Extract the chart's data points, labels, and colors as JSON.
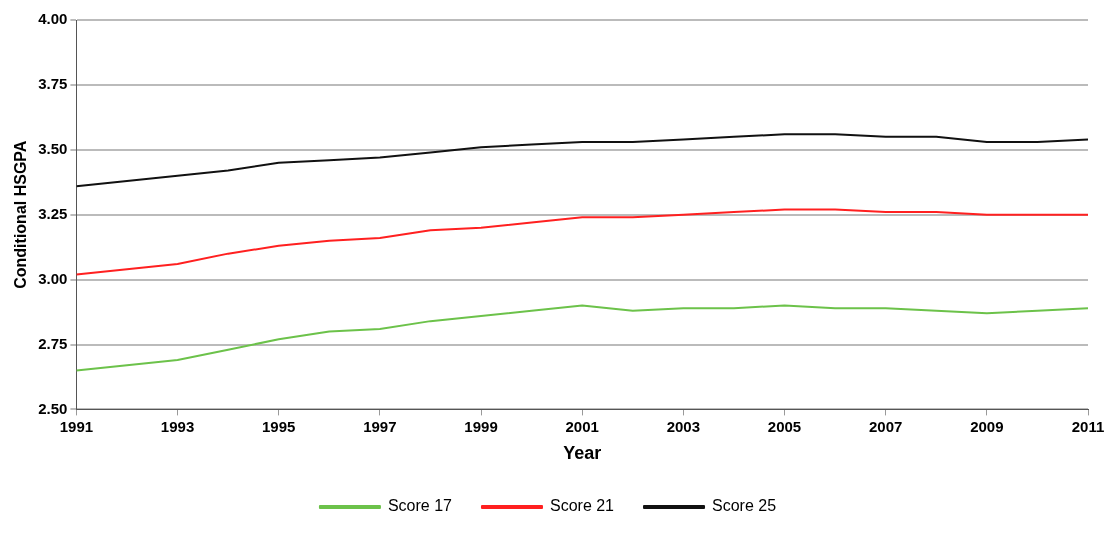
{
  "chart_data": {
    "type": "line",
    "xlabel": "Year",
    "ylabel": "Conditional HSGPA",
    "x": [
      1991,
      1992,
      1993,
      1994,
      1995,
      1996,
      1997,
      1998,
      1999,
      2000,
      2001,
      2002,
      2003,
      2004,
      2005,
      2006,
      2007,
      2008,
      2009,
      2010,
      2011
    ],
    "series": [
      {
        "name": "Score 17",
        "color": "#6cc24a",
        "values": [
          2.65,
          2.67,
          2.69,
          2.73,
          2.77,
          2.8,
          2.81,
          2.84,
          2.86,
          2.88,
          2.9,
          2.88,
          2.89,
          2.89,
          2.9,
          2.89,
          2.89,
          2.88,
          2.87,
          2.88,
          2.89
        ]
      },
      {
        "name": "Score 21",
        "color": "#ff2020",
        "values": [
          3.02,
          3.04,
          3.06,
          3.1,
          3.13,
          3.15,
          3.16,
          3.19,
          3.2,
          3.22,
          3.24,
          3.24,
          3.25,
          3.26,
          3.27,
          3.27,
          3.26,
          3.26,
          3.25,
          3.25,
          3.25
        ]
      },
      {
        "name": "Score 25",
        "color": "#111111",
        "values": [
          3.36,
          3.38,
          3.4,
          3.42,
          3.45,
          3.46,
          3.47,
          3.49,
          3.51,
          3.52,
          3.53,
          3.53,
          3.54,
          3.55,
          3.56,
          3.56,
          3.55,
          3.55,
          3.53,
          3.53,
          3.54
        ]
      }
    ],
    "xlim": [
      1991,
      2011
    ],
    "xticks": [
      1991,
      1993,
      1995,
      1997,
      1999,
      2001,
      2003,
      2005,
      2007,
      2009,
      2011
    ],
    "ylim": [
      2.5,
      4
    ],
    "yticks": [
      {
        "value": 2.5,
        "label": "2.50"
      },
      {
        "value": 2.75,
        "label": "2.75"
      },
      {
        "value": 3,
        "label": "3.00"
      },
      {
        "value": 3.25,
        "label": "3.25"
      },
      {
        "value": 3.5,
        "label": "3.50"
      },
      {
        "value": 3.75,
        "label": "3.75"
      },
      {
        "value": 4,
        "label": "4.00"
      }
    ],
    "grid": "y",
    "legend": "bottom",
    "marker": "none",
    "line_style": "solid"
  }
}
